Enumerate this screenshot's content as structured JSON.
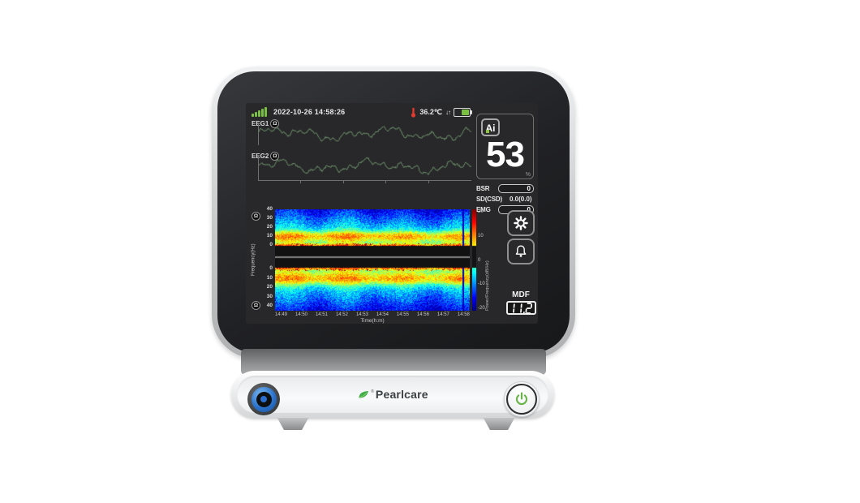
{
  "device": {
    "brand_text": "Pearlcare",
    "registered_mark": "®"
  },
  "status_bar": {
    "datetime": "2022-10-26 14:58:26",
    "temperature": "36.2℃",
    "arrows": "↓↑"
  },
  "eeg": {
    "channels": [
      {
        "label": "EEG1"
      },
      {
        "label": "EEG2"
      }
    ],
    "impedance_symbol": "Ω",
    "wave_color": "#6f946c"
  },
  "spectrogram": {
    "ylabel": "Frequency(Hz)",
    "xlabel": "Time(h:m)",
    "yticks_top": [
      "40",
      "30",
      "20",
      "10",
      "0"
    ],
    "yticks_bottom": [
      "0",
      "10",
      "20",
      "30",
      "40"
    ],
    "xticks": [
      "14:49",
      "14:50",
      "14:51",
      "14:52",
      "14:53",
      "14:54",
      "14:55",
      "14:56",
      "14:57",
      "14:58"
    ],
    "colorbar": {
      "label": "Power/Frequency(dB/Hz)",
      "ticks": [
        "20",
        "10",
        "0",
        "-10",
        "-20"
      ]
    },
    "features": {
      "freq_range_hz": [
        0,
        44
      ],
      "high_power_band_hz": [
        8,
        15
      ],
      "very_high_power_hz": [
        0,
        2
      ]
    }
  },
  "right_panel": {
    "ai_label": "Ai",
    "index_value": "53",
    "index_unit": "%",
    "params": [
      {
        "label": "BSR",
        "value": "0",
        "boxed": true
      },
      {
        "label": "SD(CSD)",
        "value": "0.0(0.0)",
        "boxed": false
      },
      {
        "label": "EMG",
        "value": "0",
        "boxed": true
      }
    ],
    "mdf": {
      "label": "MDF",
      "value": "11.2"
    }
  },
  "colors": {
    "accent_green": "#7cc043",
    "alarm_red": "#e23b2e",
    "power_green": "#67b346",
    "port_blue": "#2a72cc"
  }
}
